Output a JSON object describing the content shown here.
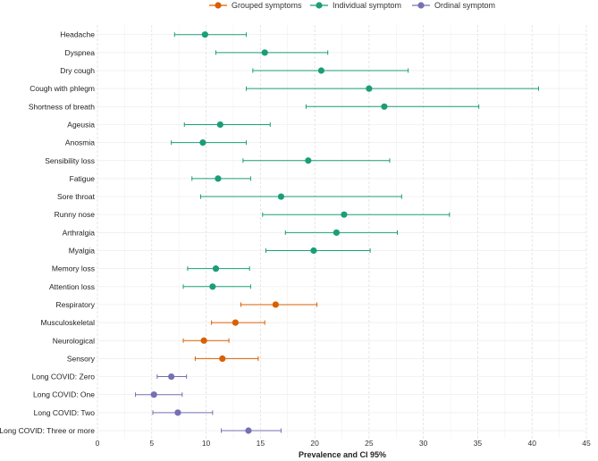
{
  "chart_data": {
    "type": "scatter",
    "title": "",
    "xlabel": "Prevalence and CI 95%",
    "ylabel": "",
    "xlim": [
      0,
      45
    ],
    "xticks": [
      0,
      5,
      10,
      15,
      20,
      25,
      30,
      35,
      40,
      45
    ],
    "grid": true,
    "legend_position": "top",
    "legend": [
      {
        "name": "Grouped symptoms",
        "color": "#d95f02"
      },
      {
        "name": "Individual symptom",
        "color": "#1b9e77"
      },
      {
        "name": "Ordinal symptom",
        "color": "#7570b3"
      }
    ],
    "rows": [
      {
        "label": "Headache",
        "group": 1,
        "value": 9.9,
        "low": 7.1,
        "high": 13.7
      },
      {
        "label": "Dyspnea",
        "group": 1,
        "value": 15.4,
        "low": 10.9,
        "high": 21.2
      },
      {
        "label": "Dry cough",
        "group": 1,
        "value": 20.6,
        "low": 14.3,
        "high": 28.6
      },
      {
        "label": "Cough with phlegm",
        "group": 1,
        "value": 25.0,
        "low": 13.7,
        "high": 40.6
      },
      {
        "label": "Shortness of breath",
        "group": 1,
        "value": 26.4,
        "low": 19.2,
        "high": 35.1
      },
      {
        "label": "Ageusia",
        "group": 1,
        "value": 11.3,
        "low": 8.0,
        "high": 15.9
      },
      {
        "label": "Anosmia",
        "group": 1,
        "value": 9.7,
        "low": 6.8,
        "high": 13.7
      },
      {
        "label": "Sensibility loss",
        "group": 1,
        "value": 19.4,
        "low": 13.4,
        "high": 26.9
      },
      {
        "label": "Fatigue",
        "group": 1,
        "value": 11.1,
        "low": 8.7,
        "high": 14.1
      },
      {
        "label": "Sore throat",
        "group": 1,
        "value": 16.9,
        "low": 9.5,
        "high": 28.0
      },
      {
        "label": "Runny nose",
        "group": 1,
        "value": 22.7,
        "low": 15.2,
        "high": 32.4
      },
      {
        "label": "Arthralgia",
        "group": 1,
        "value": 22.0,
        "low": 17.3,
        "high": 27.6
      },
      {
        "label": "Myalgia",
        "group": 1,
        "value": 19.9,
        "low": 15.5,
        "high": 25.1
      },
      {
        "label": "Memory loss",
        "group": 1,
        "value": 10.9,
        "low": 8.3,
        "high": 14.0
      },
      {
        "label": "Attention loss",
        "group": 1,
        "value": 10.6,
        "low": 7.9,
        "high": 14.1
      },
      {
        "label": "Respiratory",
        "group": 0,
        "value": 16.4,
        "low": 13.2,
        "high": 20.2
      },
      {
        "label": "Musculoskeletal",
        "group": 0,
        "value": 12.7,
        "low": 10.5,
        "high": 15.4
      },
      {
        "label": "Neurological",
        "group": 0,
        "value": 9.8,
        "low": 7.9,
        "high": 12.1
      },
      {
        "label": "Sensory",
        "group": 0,
        "value": 11.5,
        "low": 9.0,
        "high": 14.8
      },
      {
        "label": "Long COVID: Zero",
        "group": 2,
        "value": 6.8,
        "low": 5.5,
        "high": 8.2
      },
      {
        "label": "Long COVID: One",
        "group": 2,
        "value": 5.2,
        "low": 3.5,
        "high": 7.8
      },
      {
        "label": "Long COVID: Two",
        "group": 2,
        "value": 7.4,
        "low": 5.1,
        "high": 10.6
      },
      {
        "label": "Long COVID: Three or more",
        "group": 2,
        "value": 13.9,
        "low": 11.4,
        "high": 16.9
      }
    ]
  }
}
